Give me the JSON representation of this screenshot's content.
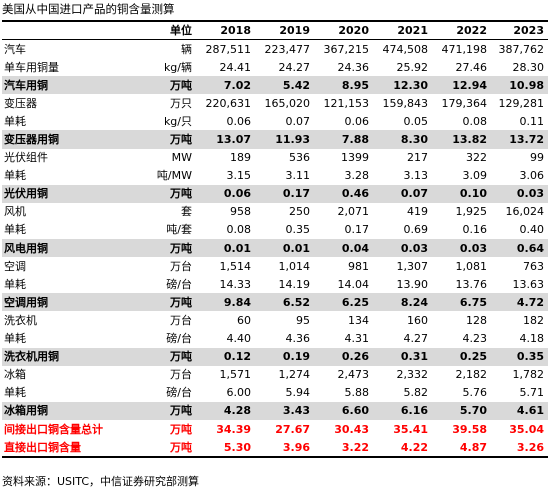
{
  "title": "美国从中国进口产品的铜含量测算",
  "header": [
    "单位",
    "2018",
    "2019",
    "2020",
    "2021",
    "2022",
    "2023"
  ],
  "rows": [
    {
      "label": "汽车",
      "unit": "辆",
      "values": [
        "287,511",
        "223,477",
        "367,215",
        "474,508",
        "471,198",
        "387,762"
      ],
      "style": "plain"
    },
    {
      "label": "单车用铜量",
      "unit": "kg/辆",
      "values": [
        "24.41",
        "24.27",
        "24.36",
        "25.92",
        "27.46",
        "28.30"
      ],
      "style": "plain"
    },
    {
      "label": "汽车用铜",
      "unit": "万吨",
      "values": [
        "7.02",
        "5.42",
        "8.95",
        "12.30",
        "12.94",
        "10.98"
      ],
      "style": "shade"
    },
    {
      "label": "变压器",
      "unit": "万只",
      "values": [
        "220,631",
        "165,020",
        "121,153",
        "159,843",
        "179,364",
        "129,281"
      ],
      "style": "plain"
    },
    {
      "label": "单耗",
      "unit": "kg/只",
      "values": [
        "0.06",
        "0.07",
        "0.06",
        "0.05",
        "0.08",
        "0.11"
      ],
      "style": "plain"
    },
    {
      "label": "变压器用铜",
      "unit": "万吨",
      "values": [
        "13.07",
        "11.93",
        "7.88",
        "8.30",
        "13.82",
        "13.72"
      ],
      "style": "shade"
    },
    {
      "label": "光伏组件",
      "unit": "MW",
      "values": [
        "189",
        "536",
        "1399",
        "217",
        "322",
        "99"
      ],
      "style": "plain"
    },
    {
      "label": "单耗",
      "unit": "吨/MW",
      "values": [
        "3.15",
        "3.11",
        "3.28",
        "3.13",
        "3.09",
        "3.06"
      ],
      "style": "plain"
    },
    {
      "label": "光伏用铜",
      "unit": "万吨",
      "values": [
        "0.06",
        "0.17",
        "0.46",
        "0.07",
        "0.10",
        "0.03"
      ],
      "style": "shade"
    },
    {
      "label": "风机",
      "unit": "套",
      "values": [
        "958",
        "250",
        "2,071",
        "419",
        "1,925",
        "16,024"
      ],
      "style": "plain"
    },
    {
      "label": "单耗",
      "unit": "吨/套",
      "values": [
        "0.08",
        "0.35",
        "0.17",
        "0.69",
        "0.16",
        "0.40"
      ],
      "style": "plain"
    },
    {
      "label": "风电用铜",
      "unit": "万吨",
      "values": [
        "0.01",
        "0.01",
        "0.04",
        "0.03",
        "0.03",
        "0.64"
      ],
      "style": "shade"
    },
    {
      "label": "空调",
      "unit": "万台",
      "values": [
        "1,514",
        "1,014",
        "981",
        "1,307",
        "1,081",
        "763"
      ],
      "style": "plain"
    },
    {
      "label": "单耗",
      "unit": "磅/台",
      "values": [
        "14.33",
        "14.19",
        "14.04",
        "13.90",
        "13.76",
        "13.63"
      ],
      "style": "plain"
    },
    {
      "label": "空调用铜",
      "unit": "万吨",
      "values": [
        "9.84",
        "6.52",
        "6.25",
        "8.24",
        "6.75",
        "4.72"
      ],
      "style": "shade"
    },
    {
      "label": "洗衣机",
      "unit": "万台",
      "values": [
        "60",
        "95",
        "134",
        "160",
        "128",
        "182"
      ],
      "style": "plain"
    },
    {
      "label": "单耗",
      "unit": "磅/台",
      "values": [
        "4.40",
        "4.36",
        "4.31",
        "4.27",
        "4.23",
        "4.18"
      ],
      "style": "plain"
    },
    {
      "label": "洗衣机用铜",
      "unit": "万吨",
      "values": [
        "0.12",
        "0.19",
        "0.26",
        "0.31",
        "0.25",
        "0.35"
      ],
      "style": "shade"
    },
    {
      "label": "冰箱",
      "unit": "万台",
      "values": [
        "1,571",
        "1,274",
        "2,473",
        "2,332",
        "2,182",
        "1,782"
      ],
      "style": "plain"
    },
    {
      "label": "单耗",
      "unit": "磅/台",
      "values": [
        "6.00",
        "5.94",
        "5.88",
        "5.82",
        "5.76",
        "5.71"
      ],
      "style": "plain"
    },
    {
      "label": "冰箱用铜",
      "unit": "万吨",
      "values": [
        "4.28",
        "3.43",
        "6.60",
        "6.16",
        "5.70",
        "4.61"
      ],
      "style": "shade"
    },
    {
      "label": "间接出口铜含量总计",
      "unit": "万吨",
      "values": [
        "34.39",
        "27.67",
        "30.43",
        "35.41",
        "39.58",
        "35.04"
      ],
      "style": "red"
    },
    {
      "label": "直接出口铜含量",
      "unit": "万吨",
      "values": [
        "5.30",
        "3.96",
        "3.22",
        "4.22",
        "4.87",
        "3.26"
      ],
      "style": "red last"
    }
  ],
  "source": "资料来源：USITC，中信证券研究部测算",
  "colors": {
    "shade": "#d9d9d9",
    "total_text": "#ff0000"
  }
}
